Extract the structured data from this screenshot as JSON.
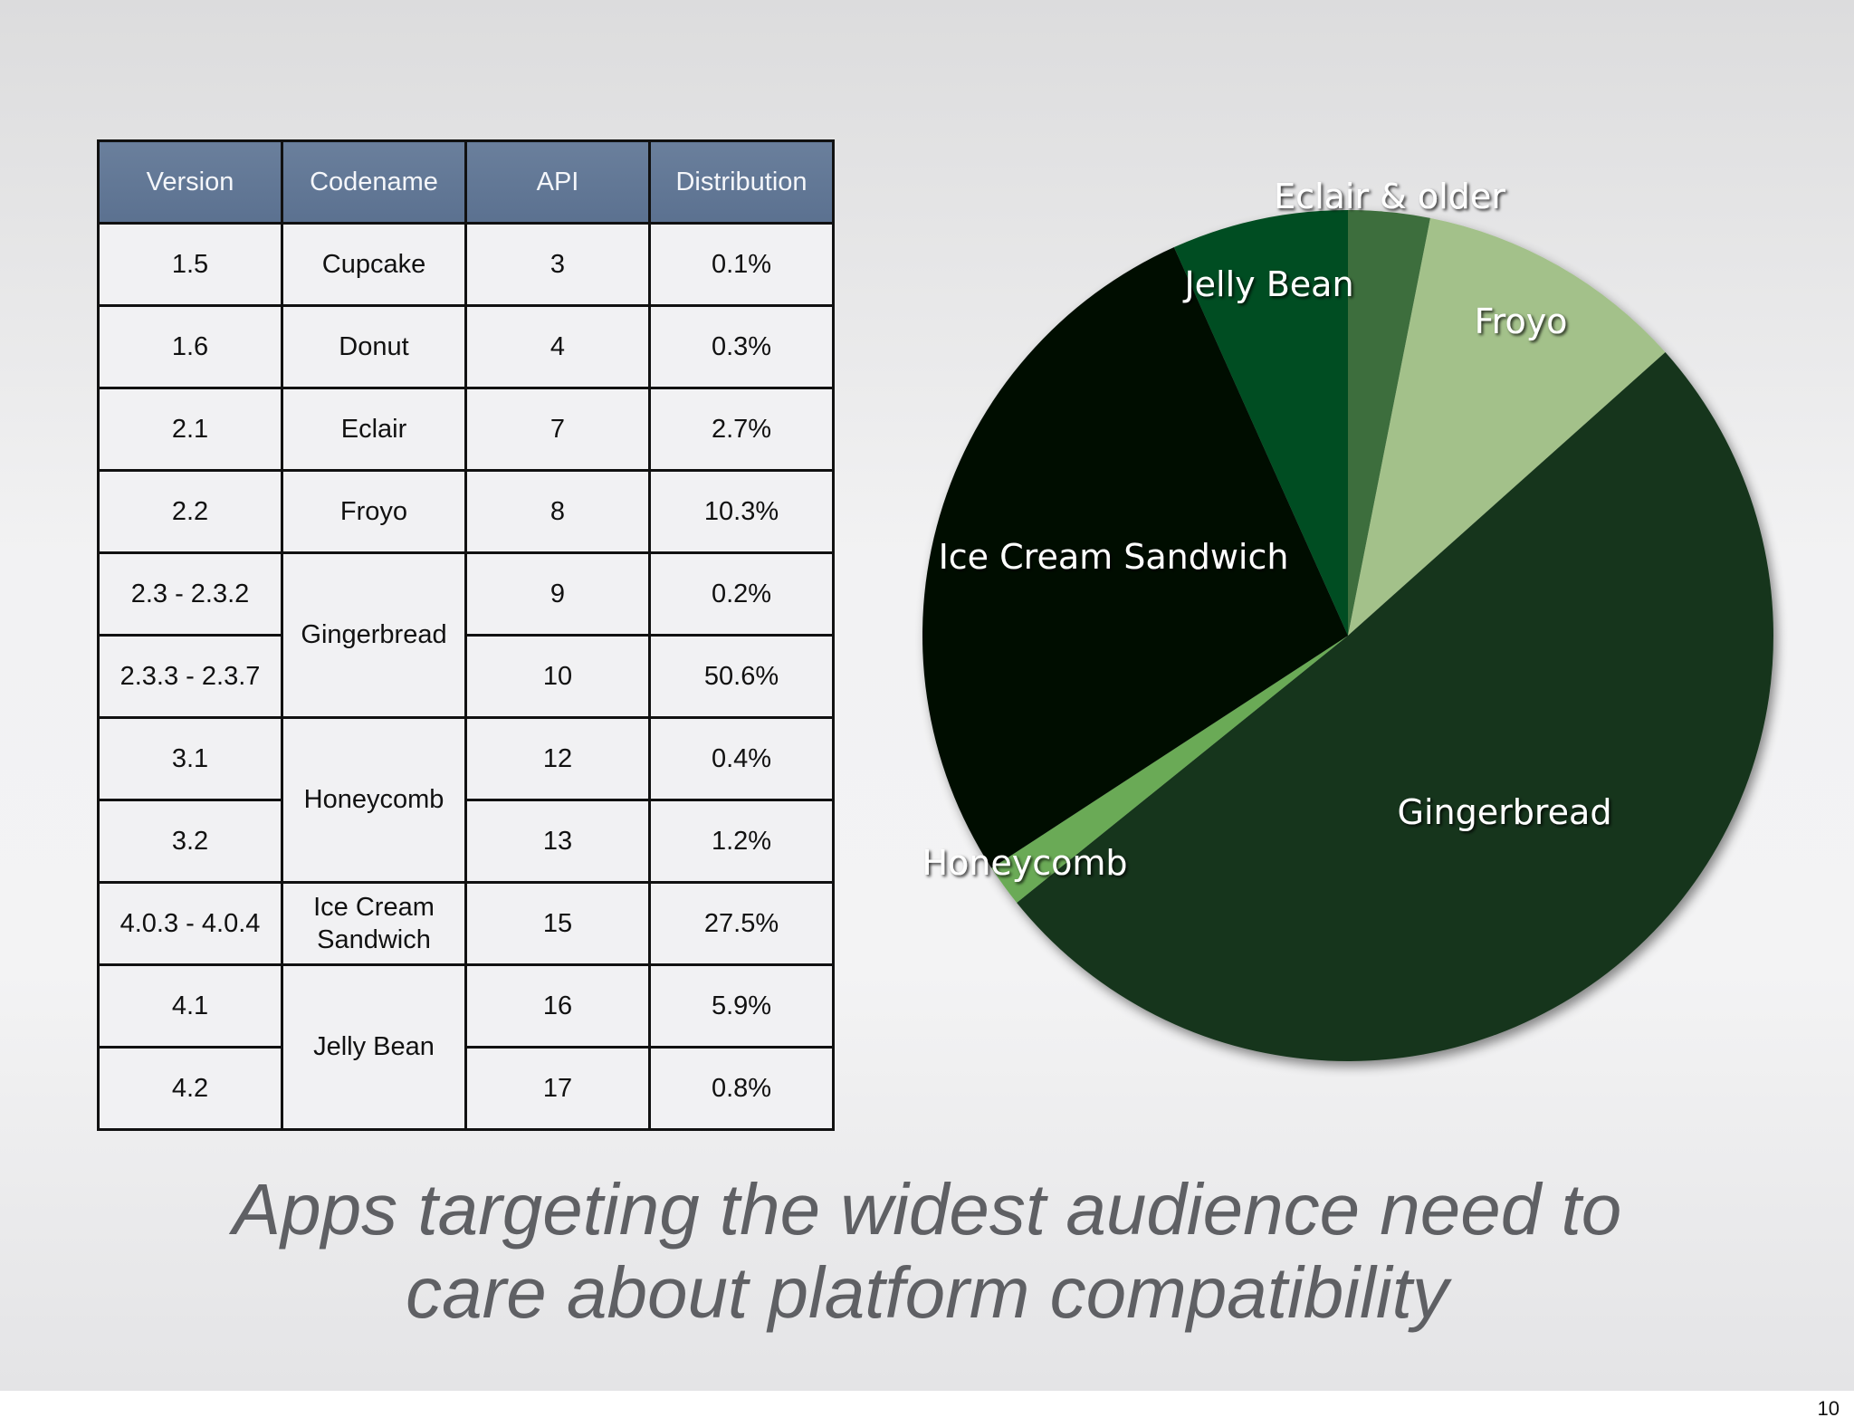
{
  "table": {
    "headers": [
      "Version",
      "Codename",
      "API",
      "Distribution"
    ],
    "rows": [
      {
        "version": "1.5",
        "codename": "Cupcake",
        "api": "3",
        "distribution": "0.1%"
      },
      {
        "version": "1.6",
        "codename": "Donut",
        "api": "4",
        "distribution": "0.3%"
      },
      {
        "version": "2.1",
        "codename": "Eclair",
        "api": "7",
        "distribution": "2.7%"
      },
      {
        "version": "2.2",
        "codename": "Froyo",
        "api": "8",
        "distribution": "10.3%"
      },
      {
        "version": "2.3 - 2.3.2",
        "codename": "Gingerbread",
        "api": "9",
        "distribution": "0.2%"
      },
      {
        "version": "2.3.3 - 2.3.7",
        "codename": "",
        "api": "10",
        "distribution": "50.6%"
      },
      {
        "version": "3.1",
        "codename": "Honeycomb",
        "api": "12",
        "distribution": "0.4%"
      },
      {
        "version": "3.2",
        "codename": "",
        "api": "13",
        "distribution": "1.2%"
      },
      {
        "version": "4.0.3 - 4.0.4",
        "codename": "Ice Cream Sandwich",
        "api": "15",
        "distribution": "27.5%"
      },
      {
        "version": "4.1",
        "codename": "Jelly Bean",
        "api": "16",
        "distribution": "5.9%"
      },
      {
        "version": "4.2",
        "codename": "",
        "api": "17",
        "distribution": "0.8%"
      }
    ]
  },
  "chart_data": {
    "type": "pie",
    "categories": [
      "Eclair & older",
      "Froyo",
      "Gingerbread",
      "Honeycomb",
      "Ice Cream Sandwich",
      "Jelly Bean"
    ],
    "values": [
      3.1,
      10.3,
      50.8,
      1.6,
      27.5,
      6.7
    ],
    "colors": [
      "#3e6e3c",
      "#a3c18a",
      "#18361d",
      "#6aaa57",
      "#020c05",
      "#004d20"
    ],
    "start_angle_deg": 0,
    "direction": "clockwise"
  },
  "caption": {
    "line1": "Apps targeting the widest audience need to",
    "line2": "care about platform compatibility"
  },
  "page_number": "10"
}
